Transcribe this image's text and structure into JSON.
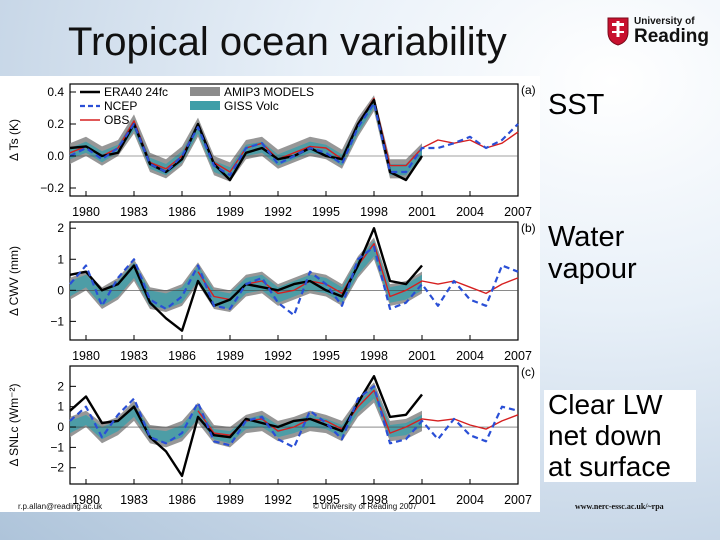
{
  "slide": {
    "title": "Tropical ocean variability",
    "logo": {
      "line1": "University of",
      "line2": "Reading"
    },
    "footer": {
      "email": "r.p.allan@reading.ac.uk",
      "copyright": "© University of Reading 2007",
      "url": "www.nerc-essc.ac.uk/~rpa"
    },
    "panel_titles": [
      "SST",
      "Water\nvapour",
      "Clear LW\nnet down\nat surface"
    ]
  },
  "colors": {
    "era40": "#000000",
    "ncep": "#2a4fd6",
    "obs": "#d62020",
    "amip_band": "#8c8c8c",
    "giss_band": "#3f9ea8"
  },
  "chart_data": [
    {
      "type": "line",
      "panel": "(a)",
      "ylabel": "Δ Ts (K)",
      "xlim": [
        1979,
        2007
      ],
      "ylim": [
        -0.25,
        0.45
      ],
      "yticks": [
        -0.2,
        0.0,
        0.2,
        0.4
      ],
      "ytick_labels": [
        "−0.2",
        "0.0",
        "0.2",
        "0.4"
      ],
      "xticks": [
        1980,
        1983,
        1986,
        1989,
        1992,
        1995,
        1998,
        2001,
        2004,
        2007
      ],
      "legend": [
        "ERA40 24fc",
        "NCEP",
        "OBS",
        "AMIP3 MODELS",
        "GISS Volc"
      ],
      "legend_placement": "top-left",
      "x": [
        1979,
        1980,
        1981,
        1982,
        1983,
        1984,
        1985,
        1986,
        1987,
        1988,
        1989,
        1990,
        1991,
        1992,
        1993,
        1994,
        1995,
        1996,
        1997,
        1998,
        1999,
        2000,
        2001,
        2002,
        2003,
        2004,
        2005,
        2006,
        2007
      ],
      "series": [
        {
          "name": "ERA40 24fc",
          "values": [
            0.05,
            0.06,
            0.0,
            0.02,
            0.2,
            -0.05,
            -0.1,
            -0.02,
            0.2,
            -0.05,
            -0.15,
            0.02,
            0.05,
            -0.02,
            0.0,
            0.05,
            0.0,
            -0.02,
            0.2,
            0.35,
            -0.1,
            -0.15,
            0.0,
            null,
            null,
            null,
            null,
            null,
            null
          ]
        },
        {
          "name": "NCEP",
          "values": [
            0.0,
            0.05,
            -0.02,
            0.05,
            0.2,
            -0.05,
            -0.1,
            0.0,
            0.18,
            -0.06,
            -0.12,
            0.05,
            0.08,
            -0.05,
            0.0,
            0.05,
            0.02,
            -0.05,
            0.18,
            0.33,
            -0.1,
            -0.1,
            0.05,
            0.05,
            0.08,
            0.12,
            0.05,
            0.1,
            0.2
          ]
        },
        {
          "name": "OBS",
          "values": [
            0.02,
            0.06,
            0.0,
            0.05,
            0.22,
            -0.04,
            -0.08,
            0.0,
            0.2,
            -0.04,
            -0.1,
            0.05,
            0.08,
            -0.02,
            0.02,
            0.06,
            0.05,
            -0.02,
            0.2,
            0.36,
            -0.06,
            -0.06,
            0.05,
            0.1,
            0.08,
            0.1,
            0.05,
            0.08,
            0.15
          ]
        }
      ],
      "bands": [
        {
          "name": "AMIP3 MODELS",
          "lower": [
            -0.05,
            0.0,
            -0.06,
            0.0,
            0.14,
            -0.1,
            -0.14,
            -0.06,
            0.12,
            -0.12,
            -0.16,
            -0.02,
            0.0,
            -0.08,
            -0.04,
            0.0,
            -0.02,
            -0.08,
            0.12,
            0.28,
            -0.14,
            -0.14,
            -0.02,
            null,
            null,
            null,
            null,
            null,
            null
          ],
          "upper": [
            0.08,
            0.12,
            0.06,
            0.1,
            0.26,
            0.02,
            -0.02,
            0.06,
            0.24,
            0.0,
            -0.04,
            0.1,
            0.12,
            0.04,
            0.08,
            0.12,
            0.1,
            0.04,
            0.24,
            0.38,
            -0.02,
            -0.02,
            0.08,
            null,
            null,
            null,
            null,
            null,
            null
          ]
        },
        {
          "name": "GISS Volc",
          "lower": [
            -0.02,
            0.02,
            -0.04,
            0.02,
            0.16,
            -0.08,
            -0.12,
            -0.04,
            0.14,
            -0.1,
            -0.14,
            0.0,
            0.02,
            -0.06,
            -0.02,
            0.02,
            0.0,
            -0.06,
            0.14,
            0.3,
            -0.12,
            -0.12,
            0.0,
            null,
            null,
            null,
            null,
            null,
            null
          ],
          "upper": [
            0.05,
            0.09,
            0.03,
            0.07,
            0.23,
            -0.01,
            -0.05,
            0.03,
            0.21,
            -0.03,
            -0.07,
            0.07,
            0.09,
            0.01,
            0.05,
            0.09,
            0.07,
            0.01,
            0.21,
            0.35,
            -0.05,
            -0.05,
            0.05,
            null,
            null,
            null,
            null,
            null,
            null
          ]
        }
      ]
    },
    {
      "type": "line",
      "panel": "(b)",
      "ylabel": "Δ CWV (mm)",
      "xlim": [
        1979,
        2007
      ],
      "ylim": [
        -1.6,
        2.2
      ],
      "yticks": [
        -1,
        0,
        1,
        2
      ],
      "ytick_labels": [
        "−1",
        "0",
        "1",
        "2"
      ],
      "xticks": [
        1980,
        1983,
        1986,
        1989,
        1992,
        1995,
        1998,
        2001,
        2004,
        2007
      ],
      "x": [
        1979,
        1980,
        1981,
        1982,
        1983,
        1984,
        1985,
        1986,
        1987,
        1988,
        1989,
        1990,
        1991,
        1992,
        1993,
        1994,
        1995,
        1996,
        1997,
        1998,
        1999,
        2000,
        2001,
        2002,
        2003,
        2004,
        2005,
        2006,
        2007
      ],
      "series": [
        {
          "name": "ERA40 24fc",
          "values": [
            0.5,
            0.6,
            0.0,
            0.2,
            0.8,
            -0.4,
            -0.9,
            -1.3,
            0.3,
            -0.5,
            -0.3,
            0.2,
            0.1,
            0.0,
            0.2,
            0.3,
            0.0,
            -0.2,
            0.8,
            2.0,
            0.3,
            0.2,
            0.8,
            null,
            null,
            null,
            null,
            null,
            null
          ]
        },
        {
          "name": "NCEP",
          "values": [
            0.2,
            0.8,
            -0.5,
            0.4,
            1.0,
            -0.3,
            -0.6,
            -0.2,
            0.8,
            -0.5,
            -0.6,
            0.2,
            0.4,
            -0.4,
            -0.8,
            0.6,
            0.2,
            -0.5,
            1.0,
            1.4,
            -0.6,
            -0.4,
            0.2,
            -0.5,
            0.3,
            -0.3,
            -0.5,
            0.8,
            0.6
          ]
        },
        {
          "name": "OBS",
          "values": [
            null,
            null,
            null,
            null,
            null,
            null,
            null,
            null,
            0.6,
            -0.2,
            -0.3,
            0.2,
            0.3,
            -0.1,
            0.0,
            0.3,
            0.2,
            -0.1,
            0.8,
            1.5,
            -0.2,
            0.0,
            0.3,
            0.2,
            0.3,
            0.1,
            -0.1,
            0.2,
            0.4
          ]
        }
      ],
      "bands": [
        {
          "name": "AMIP3 MODELS",
          "lower": [
            -0.3,
            0.0,
            -0.6,
            -0.3,
            0.3,
            -0.6,
            -0.7,
            -0.5,
            0.2,
            -0.6,
            -0.7,
            -0.2,
            -0.1,
            -0.5,
            -0.3,
            -0.1,
            -0.2,
            -0.5,
            0.4,
            1.0,
            -0.5,
            -0.4,
            -0.1,
            null,
            null,
            null,
            null,
            null,
            null
          ],
          "upper": [
            0.4,
            0.6,
            0.1,
            0.4,
            1.0,
            0.1,
            0.0,
            0.2,
            0.9,
            0.1,
            0.0,
            0.5,
            0.6,
            0.2,
            0.4,
            0.6,
            0.5,
            0.2,
            1.1,
            1.7,
            0.2,
            0.3,
            0.6,
            null,
            null,
            null,
            null,
            null,
            null
          ]
        },
        {
          "name": "GISS Volc",
          "lower": [
            -0.2,
            0.1,
            -0.5,
            -0.2,
            0.4,
            -0.5,
            -0.6,
            -0.4,
            0.3,
            -0.5,
            -0.6,
            -0.1,
            0.0,
            -0.4,
            -0.2,
            0.0,
            -0.1,
            -0.4,
            0.5,
            1.1,
            -0.4,
            -0.3,
            0.0,
            null,
            null,
            null,
            null,
            null,
            null
          ],
          "upper": [
            0.3,
            0.5,
            0.0,
            0.3,
            0.9,
            0.0,
            -0.1,
            0.1,
            0.8,
            0.0,
            -0.1,
            0.4,
            0.5,
            0.1,
            0.3,
            0.5,
            0.4,
            0.1,
            1.0,
            1.6,
            0.1,
            0.2,
            0.5,
            null,
            null,
            null,
            null,
            null,
            null
          ]
        }
      ]
    },
    {
      "type": "line",
      "panel": "(c)",
      "ylabel": "Δ SNLc (Wm⁻²)",
      "xlim": [
        1979,
        2007
      ],
      "ylim": [
        -2.8,
        3.0
      ],
      "yticks": [
        -2,
        -1,
        0,
        1,
        2
      ],
      "ytick_labels": [
        "−2",
        "−1",
        "0",
        "1",
        "2"
      ],
      "xticks": [
        1980,
        1983,
        1986,
        1989,
        1992,
        1995,
        1998,
        2001,
        2004,
        2007
      ],
      "x": [
        1979,
        1980,
        1981,
        1982,
        1983,
        1984,
        1985,
        1986,
        1987,
        1988,
        1989,
        1990,
        1991,
        1992,
        1993,
        1994,
        1995,
        1996,
        1997,
        1998,
        1999,
        2000,
        2001,
        2002,
        2003,
        2004,
        2005,
        2006,
        2007
      ],
      "series": [
        {
          "name": "ERA40 24fc",
          "values": [
            0.8,
            1.5,
            0.2,
            0.3,
            1.0,
            -0.5,
            -1.2,
            -2.4,
            0.5,
            -0.4,
            -0.5,
            0.4,
            0.2,
            0.0,
            0.3,
            0.4,
            0.1,
            -0.2,
            1.2,
            2.5,
            0.5,
            0.6,
            1.6,
            null,
            null,
            null,
            null,
            null,
            null
          ]
        },
        {
          "name": "NCEP",
          "values": [
            0.3,
            1.0,
            -0.5,
            0.6,
            1.4,
            -0.5,
            -0.8,
            -0.3,
            1.2,
            -0.7,
            -0.9,
            0.3,
            0.5,
            -0.6,
            -1.0,
            0.8,
            0.2,
            -0.6,
            1.4,
            2.0,
            -0.8,
            -0.6,
            0.3,
            -0.6,
            0.4,
            -0.4,
            -0.7,
            1.0,
            0.8
          ]
        },
        {
          "name": "OBS",
          "values": [
            null,
            null,
            null,
            null,
            null,
            null,
            null,
            null,
            0.8,
            -0.3,
            -0.4,
            0.3,
            0.4,
            -0.2,
            0.0,
            0.4,
            0.3,
            -0.1,
            1.0,
            1.8,
            -0.3,
            0.0,
            0.4,
            0.3,
            0.4,
            0.1,
            -0.1,
            0.3,
            0.6
          ]
        }
      ],
      "bands": [
        {
          "name": "AMIP3 MODELS",
          "lower": [
            -0.5,
            0.0,
            -0.8,
            -0.4,
            0.3,
            -0.8,
            -1.0,
            -0.7,
            0.2,
            -0.8,
            -1.0,
            -0.3,
            -0.2,
            -0.7,
            -0.5,
            -0.2,
            -0.3,
            -0.7,
            0.5,
            1.2,
            -0.7,
            -0.6,
            -0.2,
            null,
            null,
            null,
            null,
            null,
            null
          ],
          "upper": [
            0.5,
            0.8,
            0.2,
            0.5,
            1.3,
            0.1,
            0.0,
            0.3,
            1.2,
            0.1,
            0.0,
            0.6,
            0.8,
            0.3,
            0.5,
            0.8,
            0.6,
            0.3,
            1.4,
            2.2,
            0.3,
            0.4,
            0.8,
            null,
            null,
            null,
            null,
            null,
            null
          ]
        },
        {
          "name": "GISS Volc",
          "lower": [
            -0.3,
            0.1,
            -0.6,
            -0.2,
            0.5,
            -0.6,
            -0.8,
            -0.5,
            0.4,
            -0.6,
            -0.8,
            -0.1,
            0.0,
            -0.5,
            -0.3,
            0.0,
            -0.1,
            -0.5,
            0.7,
            1.4,
            -0.5,
            -0.4,
            0.0,
            null,
            null,
            null,
            null,
            null,
            null
          ],
          "upper": [
            0.3,
            0.6,
            0.0,
            0.3,
            1.1,
            -0.1,
            -0.2,
            0.1,
            1.0,
            -0.1,
            -0.2,
            0.4,
            0.6,
            0.1,
            0.3,
            0.6,
            0.4,
            0.1,
            1.2,
            2.0,
            0.1,
            0.2,
            0.6,
            null,
            null,
            null,
            null,
            null,
            null
          ]
        }
      ]
    }
  ]
}
